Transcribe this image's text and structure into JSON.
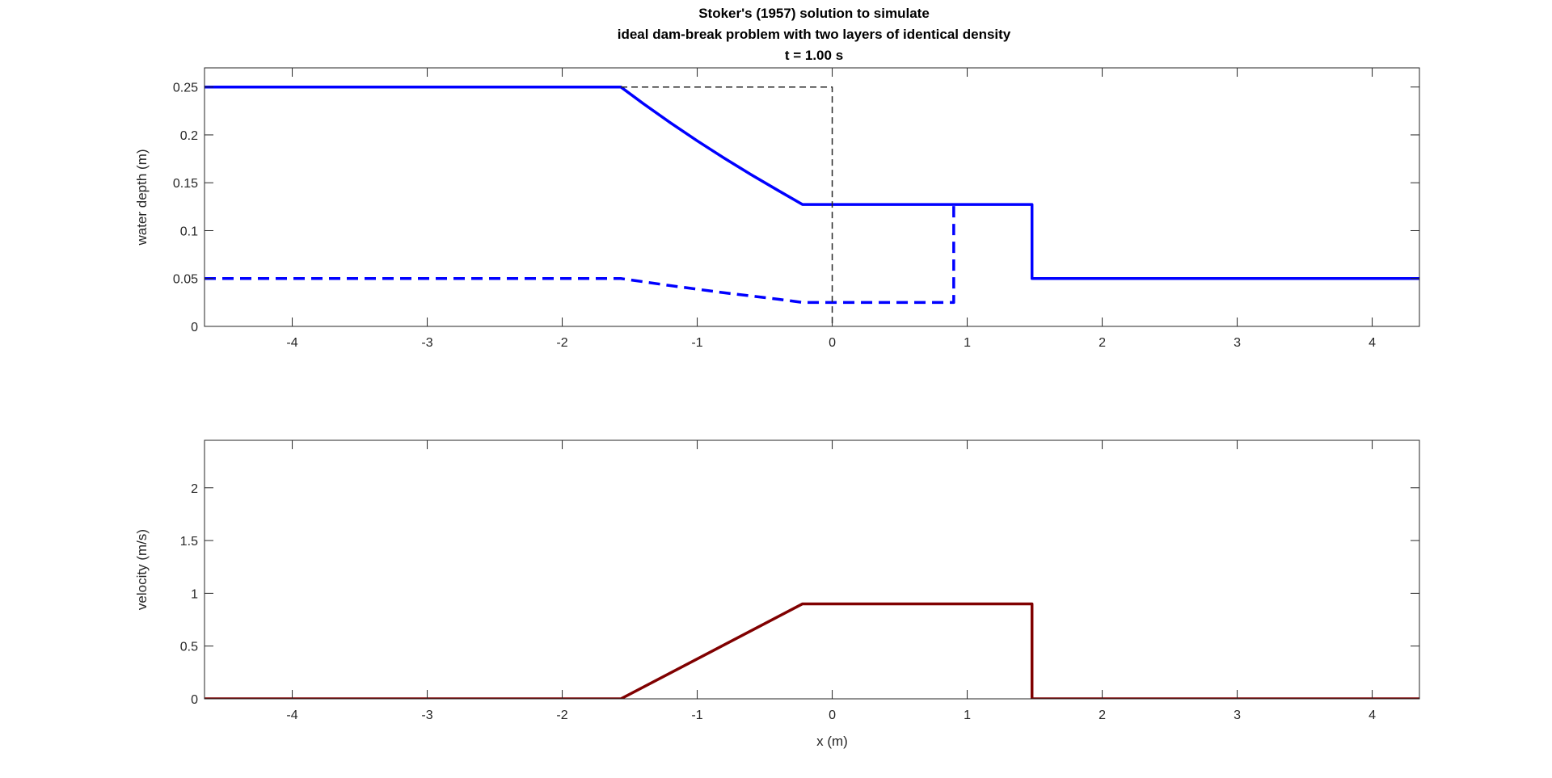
{
  "title_lines": [
    "Stoker's (1957) solution to simulate",
    "ideal dam-break problem with two layers of identical density",
    "t = 1.00 s"
  ],
  "chart_data": [
    {
      "type": "line",
      "title": "",
      "xlabel": "",
      "ylabel": "water depth (m)",
      "xlim": [
        -4.65,
        4.35
      ],
      "ylim": [
        0,
        0.27
      ],
      "x_ticks": [
        -4,
        -3,
        -2,
        -1,
        0,
        1,
        2,
        3,
        4
      ],
      "x_tick_labels": [
        "-4",
        "-3",
        "-2",
        "-1",
        "0",
        "1",
        "2",
        "3",
        "4"
      ],
      "y_ticks": [
        0,
        0.05,
        0.1,
        0.15,
        0.2,
        0.25
      ],
      "y_tick_labels": [
        "0",
        "0.05",
        "0.1",
        "0.15",
        "0.2",
        "0.25"
      ],
      "grid": false,
      "legend": "none",
      "series": [
        {
          "color": "#0000ff",
          "style": "solid",
          "points": [
            [
              -4.65,
              0.25
            ],
            [
              -1.566,
              0.25
            ],
            [
              -1.4,
              0.2327
            ],
            [
              -1.2,
              0.2128
            ],
            [
              -1.0,
              0.1938
            ],
            [
              -0.8,
              0.1757
            ],
            [
              -0.6,
              0.1584
            ],
            [
              -0.4,
              0.1419
            ],
            [
              -0.22,
              0.1273
            ],
            [
              1.48,
              0.1273
            ],
            [
              1.48,
              0.05
            ],
            [
              4.35,
              0.05
            ]
          ]
        },
        {
          "color": "#0000ff",
          "style": "dashed",
          "points": [
            [
              -4.65,
              0.05
            ],
            [
              -1.566,
              0.05
            ],
            [
              -1.2,
              0.0426
            ],
            [
              -0.8,
              0.0351
            ],
            [
              -0.4,
              0.0284
            ],
            [
              -0.22,
              0.025
            ],
            [
              0.9,
              0.025
            ],
            [
              0.9,
              0.1273
            ]
          ]
        },
        {
          "color": "#262626",
          "style": "thin-dashed",
          "points": [
            [
              -1.566,
              0.25
            ],
            [
              0,
              0.25
            ],
            [
              0,
              0
            ]
          ]
        }
      ]
    },
    {
      "type": "line",
      "title": "",
      "xlabel": "x (m)",
      "ylabel": "velocity (m/s)",
      "xlim": [
        -4.65,
        4.35
      ],
      "ylim": [
        0,
        2.45
      ],
      "x_ticks": [
        -4,
        -3,
        -2,
        -1,
        0,
        1,
        2,
        3,
        4
      ],
      "x_tick_labels": [
        "-4",
        "-3",
        "-2",
        "-1",
        "0",
        "1",
        "2",
        "3",
        "4"
      ],
      "y_ticks": [
        0,
        0.5,
        1,
        1.5,
        2
      ],
      "y_tick_labels": [
        "0",
        "0.5",
        "1",
        "1.5",
        "2"
      ],
      "grid": false,
      "legend": "none",
      "series": [
        {
          "color": "#800000",
          "style": "solid",
          "points": [
            [
              -4.65,
              0
            ],
            [
              -1.566,
              0
            ],
            [
              -0.22,
              0.9
            ],
            [
              1.48,
              0.9
            ],
            [
              1.48,
              0
            ],
            [
              4.35,
              0
            ]
          ]
        }
      ]
    }
  ]
}
